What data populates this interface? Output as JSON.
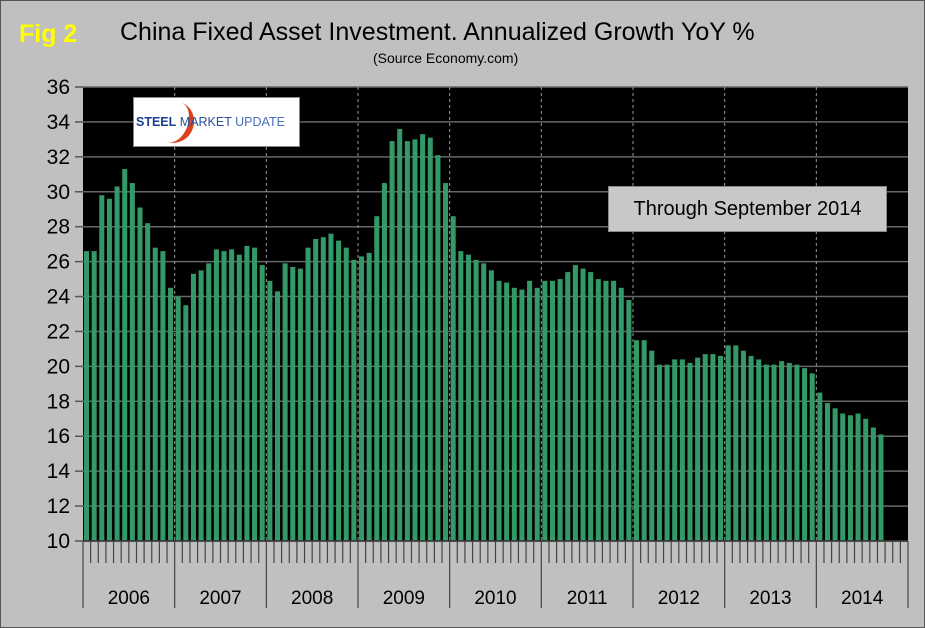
{
  "figure_label": "Fig 2",
  "logo_text": {
    "bold": "STEEL",
    "mid": "MARKET",
    "light": "UPDATE"
  },
  "annotation": "Through September 2014",
  "colors": {
    "bar": "#339966",
    "plot_bg": "#000000",
    "frame_bg": "#c0c0c0",
    "fig_label": "#ffff00"
  },
  "chart_data": {
    "type": "bar",
    "title": "China Fixed Asset Investment. Annualized Growth YoY %",
    "subtitle": "(Source Economy.com)",
    "xlabel": "",
    "ylabel": "",
    "ylim": [
      10,
      36
    ],
    "yticks": [
      "10",
      "12",
      "14",
      "16",
      "18",
      "20",
      "22",
      "24",
      "26",
      "28",
      "30",
      "32",
      "34",
      "36"
    ],
    "years": [
      "2006",
      "2007",
      "2008",
      "2009",
      "2010",
      "2011",
      "2012",
      "2013",
      "2014"
    ],
    "months_per_year": 12,
    "grid": true,
    "values": [
      26.6,
      26.6,
      29.8,
      29.6,
      30.3,
      31.3,
      30.5,
      29.1,
      28.2,
      26.8,
      26.6,
      24.5,
      24.0,
      23.5,
      25.3,
      25.5,
      25.9,
      26.7,
      26.6,
      26.7,
      26.4,
      26.9,
      26.8,
      25.8,
      24.9,
      24.3,
      25.9,
      25.7,
      25.6,
      26.8,
      27.3,
      27.4,
      27.6,
      27.2,
      26.8,
      26.1,
      26.3,
      26.5,
      28.6,
      30.5,
      32.9,
      33.6,
      32.9,
      33.0,
      33.3,
      33.1,
      32.1,
      30.5,
      28.6,
      26.6,
      26.4,
      26.1,
      25.9,
      25.5,
      24.9,
      24.8,
      24.5,
      24.4,
      24.9,
      24.5,
      24.9,
      24.9,
      25.0,
      25.4,
      25.8,
      25.6,
      25.4,
      25.0,
      24.9,
      24.9,
      24.5,
      23.8,
      21.5,
      21.5,
      20.9,
      20.1,
      20.1,
      20.4,
      20.4,
      20.2,
      20.5,
      20.7,
      20.7,
      20.6,
      21.2,
      21.2,
      20.9,
      20.6,
      20.4,
      20.1,
      20.1,
      20.3,
      20.2,
      20.1,
      19.9,
      19.6,
      18.5,
      17.9,
      17.6,
      17.3,
      17.2,
      17.3,
      17.0,
      16.5,
      16.1
    ]
  }
}
